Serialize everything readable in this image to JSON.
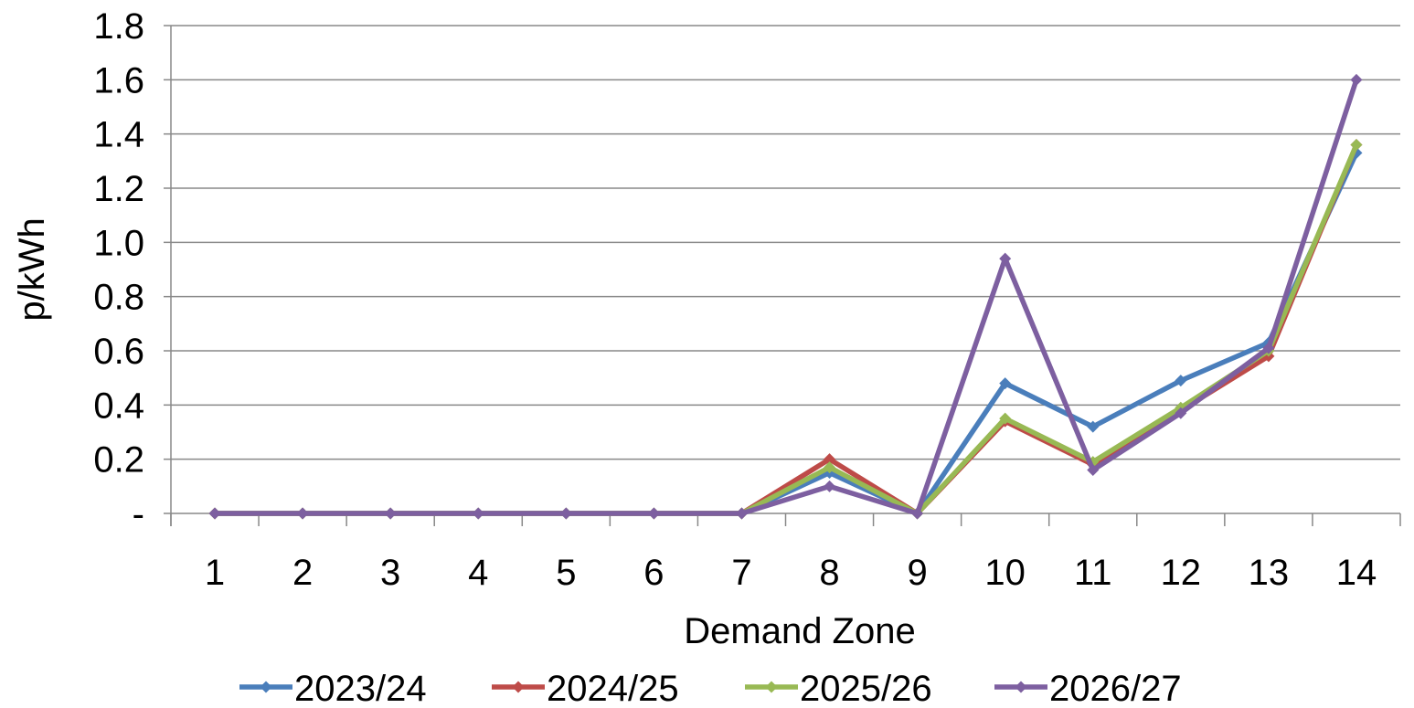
{
  "chart_data": {
    "type": "line",
    "title": "",
    "xlabel": "Demand Zone",
    "ylabel": "p/kWh",
    "categories": [
      "1",
      "2",
      "3",
      "4",
      "5",
      "6",
      "7",
      "8",
      "9",
      "10",
      "11",
      "12",
      "13",
      "14"
    ],
    "y_tick_labels": [
      "-",
      "0.2",
      "0.4",
      "0.6",
      "0.8",
      "1.0",
      "1.2",
      "1.4",
      "1.6",
      "1.8"
    ],
    "ylim": [
      0,
      1.8
    ],
    "grid": "horizontal",
    "legend_position": "bottom",
    "series": [
      {
        "name": "2023/24",
        "color": "#4a7ebb",
        "values": [
          0,
          0,
          0,
          0,
          0,
          0,
          0,
          0.15,
          0,
          0.48,
          0.32,
          0.49,
          0.63,
          1.33
        ]
      },
      {
        "name": "2024/25",
        "color": "#be4b48",
        "values": [
          0,
          0,
          0,
          0,
          0,
          0,
          0,
          0.2,
          0,
          0.34,
          0.18,
          0.38,
          0.58,
          1.36
        ]
      },
      {
        "name": "2025/26",
        "color": "#98b954",
        "values": [
          0,
          0,
          0,
          0,
          0,
          0,
          0,
          0.17,
          0,
          0.35,
          0.19,
          0.39,
          0.6,
          1.36
        ]
      },
      {
        "name": "2026/27",
        "color": "#7d5fa0",
        "values": [
          0,
          0,
          0,
          0,
          0,
          0,
          0,
          0.1,
          0,
          0.94,
          0.16,
          0.37,
          0.61,
          1.6
        ]
      }
    ]
  }
}
